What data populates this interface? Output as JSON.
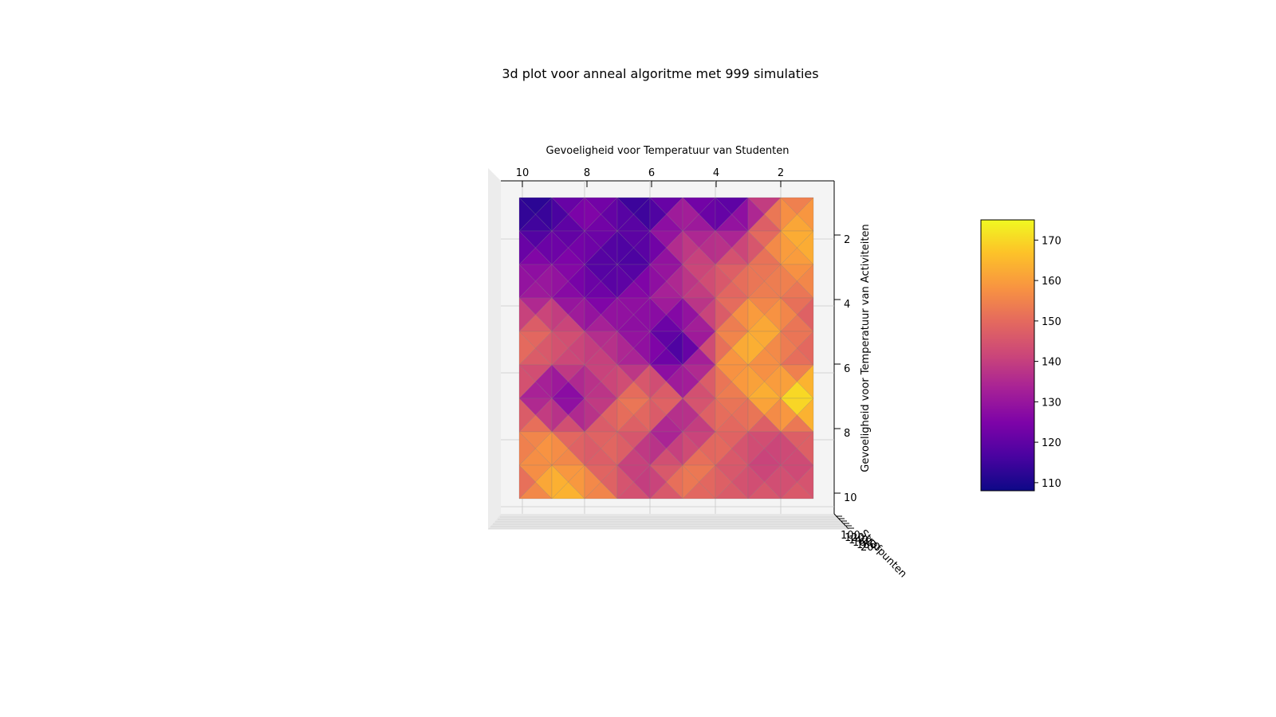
{
  "chart_data": {
    "type": "surface",
    "title": "3d plot voor anneal algoritme met 999 simulaties",
    "xlabel": "Gevoeligheid voor Temperatuur van Studenten",
    "ylabel": "Gevoeligheid voor Temperatuur van Activiteiten",
    "zlabel": "Strafpunten",
    "x_ticks": [
      "10",
      "8",
      "6",
      "4",
      "2"
    ],
    "y_ticks": [
      "2",
      "4",
      "6",
      "8",
      "10"
    ],
    "z_ticks": [
      "100",
      "120",
      "140",
      "160",
      "180",
      "200"
    ],
    "colormap": "plasma",
    "colorbar": {
      "ticks": [
        "110",
        "120",
        "130",
        "140",
        "150",
        "160",
        "170"
      ],
      "range": [
        108,
        175
      ]
    },
    "x": [
      10,
      9,
      8,
      7,
      6,
      5,
      4,
      3,
      2,
      1
    ],
    "y": [
      1,
      2,
      3,
      4,
      5,
      6,
      7,
      8,
      9,
      10
    ],
    "grid_note": "rows = y from 1 to 10, columns = x from 10 down to 1 (as drawn left to right)",
    "z": [
      [
        108,
        115,
        128,
        118,
        109,
        130,
        112,
        123,
        152,
        153
      ],
      [
        118,
        114,
        125,
        121,
        119,
        140,
        126,
        137,
        162,
        165
      ],
      [
        125,
        130,
        122,
        113,
        120,
        138,
        146,
        148,
        156,
        162
      ],
      [
        133,
        131,
        123,
        124,
        133,
        135,
        143,
        156,
        152,
        150
      ],
      [
        148,
        152,
        136,
        134,
        122,
        117,
        145,
        164,
        163,
        142
      ],
      [
        154,
        138,
        145,
        138,
        132,
        114,
        152,
        166,
        146,
        155
      ],
      [
        140,
        122,
        127,
        147,
        160,
        143,
        149,
        156,
        173,
        175
      ],
      [
        157,
        153,
        142,
        155,
        138,
        125,
        152,
        146,
        142,
        155
      ],
      [
        150,
        165,
        150,
        144,
        135,
        157,
        150,
        141,
        140,
        143
      ],
      [
        147,
        164,
        166,
        148,
        142,
        150,
        147,
        146,
        147,
        147
      ]
    ]
  }
}
